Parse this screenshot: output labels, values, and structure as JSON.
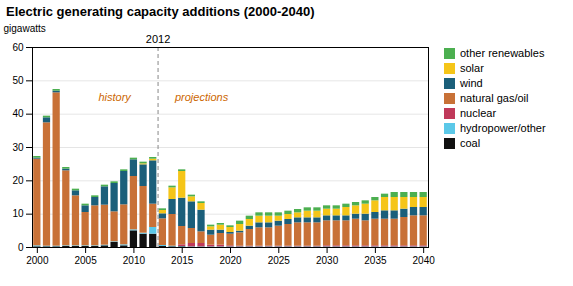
{
  "chart_data": {
    "type": "bar",
    "stacked": true,
    "title": "Electric generating capacity additions (2000-2040)",
    "ylabel": "gigawatts",
    "x": [
      2000,
      2001,
      2002,
      2003,
      2004,
      2005,
      2006,
      2007,
      2008,
      2009,
      2010,
      2011,
      2012,
      2013,
      2014,
      2015,
      2016,
      2017,
      2018,
      2019,
      2020,
      2021,
      2022,
      2023,
      2024,
      2025,
      2026,
      2027,
      2028,
      2029,
      2030,
      2031,
      2032,
      2033,
      2034,
      2035,
      2036,
      2037,
      2038,
      2039,
      2040
    ],
    "xlim": [
      1999.5,
      2040.5
    ],
    "xticks": [
      2000,
      2005,
      2010,
      2015,
      2020,
      2025,
      2030,
      2035,
      2040
    ],
    "ylim": [
      0,
      60
    ],
    "yticks": [
      0,
      10,
      20,
      30,
      40,
      50,
      60
    ],
    "grid": true,
    "legend": "right",
    "series": [
      {
        "name": "coal",
        "color": "#111111",
        "values": [
          0.2,
          0.2,
          0.2,
          0.3,
          0.3,
          0.3,
          0.3,
          0.5,
          1.5,
          0.5,
          5.0,
          4.0,
          4.0,
          0.3,
          0.2,
          0.2,
          0.1,
          0.1,
          0.1,
          0.1,
          0.1,
          0.1,
          0.1,
          0.1,
          0.1,
          0.1,
          0.1,
          0.1,
          0.1,
          0.1,
          0.1,
          0.1,
          0.1,
          0.1,
          0.1,
          0.1,
          0.1,
          0.1,
          0.1,
          0.1,
          0.1
        ]
      },
      {
        "name": "hydropower/other",
        "color": "#5bc8e8",
        "values": [
          0.3,
          0.2,
          0.2,
          0.2,
          0.2,
          0.2,
          0.2,
          0.2,
          0.2,
          0.3,
          0.3,
          0.3,
          2.0,
          0.3,
          0.2,
          0.1,
          0.1,
          0.1,
          0.1,
          0.1,
          0.1,
          0.1,
          0.1,
          0.1,
          0.1,
          0.1,
          0.1,
          0.1,
          0.1,
          0.1,
          0.1,
          0.1,
          0.1,
          0.1,
          0.1,
          0.1,
          0.1,
          0.1,
          0.1,
          0.1,
          0.1
        ]
      },
      {
        "name": "nuclear",
        "color": "#c0395a",
        "values": [
          0.0,
          0.0,
          0.0,
          0.0,
          0.0,
          0.0,
          0.0,
          0.0,
          0.0,
          0.0,
          0.0,
          0.0,
          0.0,
          0.0,
          0.0,
          0.5,
          1.0,
          1.0,
          0.5,
          0.5,
          0.3,
          0.2,
          0.2,
          0.2,
          0.2,
          0.2,
          0.2,
          0.2,
          0.2,
          0.2,
          0.3,
          0.3,
          0.3,
          0.3,
          0.3,
          0.3,
          0.3,
          0.3,
          0.3,
          0.3,
          0.3
        ]
      },
      {
        "name": "natural gas/oil",
        "color": "#c87137",
        "values": [
          26.0,
          37.0,
          46.0,
          22.5,
          15.0,
          10.0,
          12.0,
          12.0,
          9.0,
          12.0,
          16.0,
          14.0,
          7.0,
          8.0,
          9.5,
          5.5,
          4.5,
          3.5,
          3.0,
          3.5,
          3.5,
          4.0,
          5.0,
          5.5,
          5.5,
          6.0,
          6.5,
          7.0,
          7.0,
          7.0,
          7.5,
          7.5,
          7.5,
          8.0,
          7.5,
          8.0,
          8.0,
          8.0,
          8.5,
          9.0,
          9.0
        ]
      },
      {
        "name": "wind",
        "color": "#1b5f7a",
        "values": [
          0.3,
          1.5,
          0.5,
          0.5,
          1.5,
          2.0,
          2.5,
          5.5,
          8.5,
          10.0,
          5.0,
          6.5,
          13.0,
          1.5,
          4.5,
          8.5,
          8.0,
          6.5,
          1.5,
          1.0,
          0.5,
          0.5,
          1.0,
          1.5,
          1.5,
          1.5,
          1.5,
          1.5,
          1.5,
          1.5,
          1.5,
          1.5,
          1.5,
          1.5,
          2.0,
          2.0,
          2.5,
          2.5,
          2.5,
          2.5,
          2.5
        ]
      },
      {
        "name": "solar",
        "color": "#f5c518",
        "values": [
          0.0,
          0.0,
          0.0,
          0.0,
          0.0,
          0.0,
          0.0,
          0.0,
          0.0,
          0.0,
          0.0,
          0.3,
          0.5,
          1.0,
          3.5,
          8.0,
          1.5,
          2.0,
          1.0,
          1.5,
          1.5,
          2.0,
          2.0,
          2.0,
          2.0,
          1.5,
          1.5,
          1.5,
          2.0,
          2.0,
          2.0,
          2.0,
          2.5,
          2.5,
          3.0,
          3.5,
          4.0,
          4.0,
          3.5,
          3.0,
          3.0
        ]
      },
      {
        "name": "other renewables",
        "color": "#4caf50",
        "values": [
          0.5,
          0.5,
          0.5,
          0.5,
          0.5,
          0.5,
          0.5,
          0.5,
          0.5,
          0.5,
          0.5,
          0.5,
          0.5,
          0.5,
          0.5,
          0.5,
          0.5,
          0.5,
          0.5,
          0.5,
          0.5,
          1.0,
          1.0,
          1.0,
          1.0,
          1.0,
          1.0,
          1.0,
          1.0,
          1.0,
          1.0,
          1.0,
          1.0,
          1.0,
          1.0,
          1.0,
          1.0,
          1.5,
          1.5,
          1.5,
          1.5
        ]
      }
    ],
    "annotations": [
      {
        "type": "line",
        "x": 2012.5,
        "color": "#888888",
        "line_style": "dashed"
      },
      {
        "text": "history",
        "x": 2008,
        "y": 44,
        "color": "#cc6600"
      },
      {
        "text": "projections",
        "x": 2017,
        "y": 44,
        "color": "#cc6600"
      },
      {
        "text": "2012",
        "x": 2012.5
      }
    ]
  }
}
